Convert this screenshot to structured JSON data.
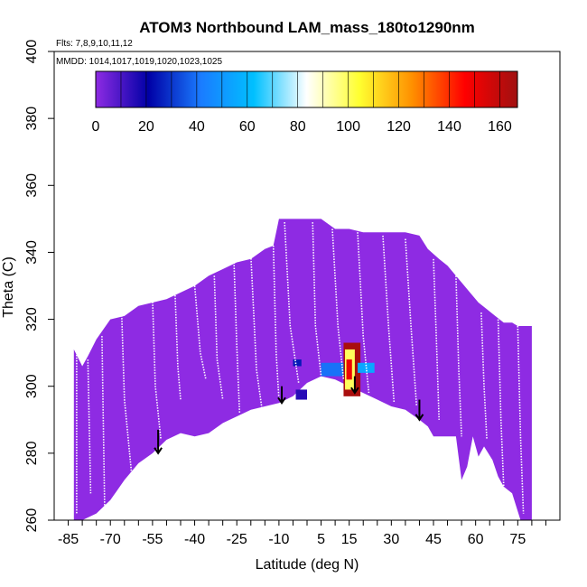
{
  "chart_data": {
    "type": "heatmap",
    "title": "ATOM3 Northbound LAM_mass_180to1290nm",
    "flights_label": "Flts: 7,8,9,10,11,12",
    "dates_label": "MMDD: 1014,1017,1019,1020,1023,1025",
    "xlabel": "Latitude (deg N)",
    "ylabel": "Theta (C)",
    "xlim": [
      -90,
      90
    ],
    "ylim": [
      260,
      400
    ],
    "xticks": [
      -85,
      -70,
      -55,
      -40,
      -25,
      -10,
      5,
      15,
      30,
      45,
      60,
      75
    ],
    "yticks": [
      260,
      280,
      300,
      320,
      340,
      360,
      380,
      400
    ],
    "colorbar": {
      "range": [
        0,
        167
      ],
      "ticks": [
        0,
        20,
        40,
        60,
        80,
        100,
        120,
        140,
        160
      ],
      "stops": [
        "#8e2be3",
        "#0000a6",
        "#1a7cff",
        "#00c0ff",
        "#ffffff",
        "#ffff30",
        "#ff9000",
        "#ff0000",
        "#a01010"
      ]
    },
    "base_color": "#8e2be3",
    "filled_region": {
      "top": [
        [
          -83,
          311
        ],
        [
          -80,
          306
        ],
        [
          -78,
          309
        ],
        [
          -75,
          314
        ],
        [
          -70,
          320
        ],
        [
          -65,
          321
        ],
        [
          -60,
          324
        ],
        [
          -55,
          325
        ],
        [
          -50,
          326
        ],
        [
          -45,
          328
        ],
        [
          -40,
          330
        ],
        [
          -35,
          333
        ],
        [
          -30,
          335
        ],
        [
          -25,
          337
        ],
        [
          -20,
          338
        ],
        [
          -15,
          341
        ],
        [
          -12,
          342
        ],
        [
          -10,
          350
        ],
        [
          0,
          350
        ],
        [
          5,
          350
        ],
        [
          10,
          347
        ],
        [
          15,
          347
        ],
        [
          20,
          346
        ],
        [
          25,
          346
        ],
        [
          30,
          346
        ],
        [
          35,
          346
        ],
        [
          40,
          345
        ],
        [
          43,
          341
        ],
        [
          47,
          338
        ],
        [
          50,
          336
        ],
        [
          53,
          333
        ],
        [
          55,
          331
        ],
        [
          58,
          328
        ],
        [
          61,
          325
        ],
        [
          64,
          323
        ],
        [
          67,
          321
        ],
        [
          70,
          319
        ],
        [
          73,
          319
        ],
        [
          75,
          318
        ],
        [
          78,
          318
        ],
        [
          80,
          318
        ]
      ],
      "bottom": [
        [
          80,
          260
        ],
        [
          76,
          260
        ],
        [
          73,
          268
        ],
        [
          70,
          270
        ],
        [
          68,
          273
        ],
        [
          66,
          278
        ],
        [
          63,
          282
        ],
        [
          61,
          279
        ],
        [
          59,
          285
        ],
        [
          57,
          276
        ],
        [
          55,
          272
        ],
        [
          53,
          285
        ],
        [
          50,
          285
        ],
        [
          45,
          285
        ],
        [
          43,
          288
        ],
        [
          40,
          290
        ],
        [
          35,
          293
        ],
        [
          30,
          294
        ],
        [
          25,
          296
        ],
        [
          20,
          298
        ],
        [
          15,
          300
        ],
        [
          10,
          302
        ],
        [
          5,
          303
        ],
        [
          0,
          301
        ],
        [
          -5,
          297
        ],
        [
          -10,
          295
        ],
        [
          -15,
          294
        ],
        [
          -20,
          293
        ],
        [
          -25,
          291
        ],
        [
          -30,
          289
        ],
        [
          -35,
          286
        ],
        [
          -40,
          285
        ],
        [
          -45,
          286
        ],
        [
          -50,
          284
        ],
        [
          -55,
          280
        ],
        [
          -60,
          277
        ],
        [
          -65,
          272
        ],
        [
          -70,
          266
        ],
        [
          -75,
          262
        ],
        [
          -80,
          260
        ],
        [
          -83,
          260
        ]
      ]
    },
    "hotspots": [
      {
        "x": [
          13,
          19
        ],
        "y": [
          297,
          313
        ],
        "value": 165
      },
      {
        "x": [
          13.5,
          17
        ],
        "y": [
          299,
          311
        ],
        "value": 100
      },
      {
        "x": [
          14,
          16
        ],
        "y": [
          302,
          308
        ],
        "value": 150
      },
      {
        "x": [
          5,
          13
        ],
        "y": [
          303,
          307
        ],
        "value": 40
      },
      {
        "x": [
          18,
          24
        ],
        "y": [
          304,
          307
        ],
        "value": 55
      },
      {
        "x": [
          -5,
          -2
        ],
        "y": [
          306,
          308
        ],
        "value": 25
      },
      {
        "x": [
          -4,
          0
        ],
        "y": [
          296,
          299
        ],
        "value": 15
      }
    ],
    "arrows": [
      {
        "x": -53,
        "y_from": 287,
        "y_to": 280
      },
      {
        "x": -9,
        "y_from": 300,
        "y_to": 295
      },
      {
        "x": 17,
        "y_from": 303,
        "y_to": 298
      },
      {
        "x": 40,
        "y_from": 296,
        "y_to": 290
      }
    ],
    "flight_tracks": [
      [
        [
          -82,
          311
        ],
        [
          -82,
          262
        ]
      ],
      [
        [
          -78,
          308
        ],
        [
          -77,
          268
        ]
      ],
      [
        [
          -73,
          315
        ],
        [
          -72,
          262
        ]
      ],
      [
        [
          -66,
          322
        ],
        [
          -65,
          296
        ],
        [
          -62,
          270
        ]
      ],
      [
        [
          -55,
          326
        ],
        [
          -54,
          300
        ],
        [
          -52,
          284
        ]
      ],
      [
        [
          -47,
          328
        ],
        [
          -46,
          306
        ],
        [
          -45,
          296
        ]
      ],
      [
        [
          -40,
          330
        ],
        [
          -38,
          310
        ],
        [
          -36,
          302
        ]
      ],
      [
        [
          -33,
          333
        ],
        [
          -32,
          308
        ],
        [
          -30,
          296
        ]
      ],
      [
        [
          -26,
          337
        ],
        [
          -25,
          312
        ],
        [
          -24,
          292
        ]
      ],
      [
        [
          -20,
          339
        ],
        [
          -18,
          305
        ],
        [
          -16,
          293
        ]
      ],
      [
        [
          -12,
          342
        ],
        [
          -11,
          310
        ],
        [
          -10,
          296
        ]
      ],
      [
        [
          -8,
          349
        ],
        [
          -6,
          318
        ],
        [
          -3,
          301
        ]
      ],
      [
        [
          2,
          349
        ],
        [
          3,
          318
        ],
        [
          5,
          303
        ]
      ],
      [
        [
          9,
          347
        ],
        [
          11,
          318
        ],
        [
          13,
          302
        ]
      ],
      [
        [
          18,
          346
        ],
        [
          20,
          315
        ],
        [
          22,
          298
        ]
      ],
      [
        [
          27,
          345
        ],
        [
          29,
          318
        ],
        [
          31,
          295
        ]
      ],
      [
        [
          35,
          344
        ],
        [
          37,
          318
        ],
        [
          39,
          294
        ]
      ],
      [
        [
          45,
          338
        ],
        [
          46,
          315
        ],
        [
          47,
          290
        ]
      ],
      [
        [
          53,
          333
        ],
        [
          54,
          305
        ],
        [
          55,
          285
        ]
      ],
      [
        [
          62,
          322
        ],
        [
          63,
          300
        ],
        [
          64,
          284
        ]
      ],
      [
        [
          68,
          320
        ],
        [
          69,
          290
        ],
        [
          70,
          270
        ]
      ],
      [
        [
          75,
          318
        ],
        [
          76,
          285
        ],
        [
          77,
          262
        ]
      ]
    ]
  }
}
